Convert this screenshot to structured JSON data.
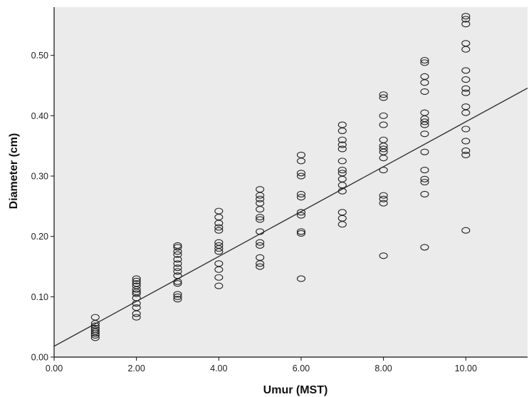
{
  "chart_data": {
    "type": "scatter",
    "title": "",
    "xlabel": "Umur (MST)",
    "ylabel": "Diameter (cm)",
    "xlim": [
      0,
      11.5
    ],
    "ylim": [
      0,
      0.58
    ],
    "x_ticks": [
      "0.00",
      "2.00",
      "4.00",
      "6.00",
      "8.00",
      "10.00"
    ],
    "x_tick_values": [
      0,
      2,
      4,
      6,
      8,
      10
    ],
    "y_ticks": [
      "0.00",
      "0.10",
      "0.20",
      "0.30",
      "0.40",
      "0.50"
    ],
    "y_tick_values": [
      0,
      0.1,
      0.2,
      0.3,
      0.4,
      0.5
    ],
    "grid": false,
    "fit_line": {
      "intercept": 0.018,
      "slope": 0.0372
    },
    "colors": {
      "background": "#ebebeb",
      "marker": "#222222",
      "line": "#333333"
    },
    "series": [
      {
        "points": [
          [
            1,
            0.032
          ],
          [
            1,
            0.036
          ],
          [
            1,
            0.039
          ],
          [
            1,
            0.042
          ],
          [
            1,
            0.045
          ],
          [
            1,
            0.048
          ],
          [
            1,
            0.052
          ],
          [
            1,
            0.056
          ],
          [
            1,
            0.066
          ],
          [
            2,
            0.066
          ],
          [
            2,
            0.072
          ],
          [
            2,
            0.082
          ],
          [
            2,
            0.089
          ],
          [
            2,
            0.098
          ],
          [
            2,
            0.105
          ],
          [
            2,
            0.108
          ],
          [
            2,
            0.112
          ],
          [
            2,
            0.118
          ],
          [
            2,
            0.122
          ],
          [
            2,
            0.126
          ],
          [
            2,
            0.13
          ],
          [
            3,
            0.096
          ],
          [
            3,
            0.1
          ],
          [
            3,
            0.104
          ],
          [
            3,
            0.122
          ],
          [
            3,
            0.125
          ],
          [
            3,
            0.135
          ],
          [
            3,
            0.142
          ],
          [
            3,
            0.148
          ],
          [
            3,
            0.155
          ],
          [
            3,
            0.162
          ],
          [
            3,
            0.17
          ],
          [
            3,
            0.175
          ],
          [
            3,
            0.182
          ],
          [
            3,
            0.185
          ],
          [
            4,
            0.118
          ],
          [
            4,
            0.132
          ],
          [
            4,
            0.145
          ],
          [
            4,
            0.155
          ],
          [
            4,
            0.175
          ],
          [
            4,
            0.18
          ],
          [
            4,
            0.185
          ],
          [
            4,
            0.19
          ],
          [
            4,
            0.21
          ],
          [
            4,
            0.215
          ],
          [
            4,
            0.222
          ],
          [
            4,
            0.232
          ],
          [
            4,
            0.242
          ],
          [
            5,
            0.15
          ],
          [
            5,
            0.155
          ],
          [
            5,
            0.165
          ],
          [
            5,
            0.185
          ],
          [
            5,
            0.19
          ],
          [
            5,
            0.208
          ],
          [
            5,
            0.228
          ],
          [
            5,
            0.232
          ],
          [
            5,
            0.245
          ],
          [
            5,
            0.255
          ],
          [
            5,
            0.262
          ],
          [
            5,
            0.268
          ],
          [
            5,
            0.278
          ],
          [
            6,
            0.13
          ],
          [
            6,
            0.205
          ],
          [
            6,
            0.208
          ],
          [
            6,
            0.235
          ],
          [
            6,
            0.24
          ],
          [
            6,
            0.265
          ],
          [
            6,
            0.27
          ],
          [
            6,
            0.3
          ],
          [
            6,
            0.305
          ],
          [
            6,
            0.325
          ],
          [
            6,
            0.335
          ],
          [
            7,
            0.22
          ],
          [
            7,
            0.23
          ],
          [
            7,
            0.24
          ],
          [
            7,
            0.275
          ],
          [
            7,
            0.285
          ],
          [
            7,
            0.295
          ],
          [
            7,
            0.305
          ],
          [
            7,
            0.31
          ],
          [
            7,
            0.325
          ],
          [
            7,
            0.345
          ],
          [
            7,
            0.352
          ],
          [
            7,
            0.36
          ],
          [
            7,
            0.375
          ],
          [
            7,
            0.385
          ],
          [
            8,
            0.168
          ],
          [
            8,
            0.255
          ],
          [
            8,
            0.262
          ],
          [
            8,
            0.268
          ],
          [
            8,
            0.31
          ],
          [
            8,
            0.33
          ],
          [
            8,
            0.34
          ],
          [
            8,
            0.345
          ],
          [
            8,
            0.35
          ],
          [
            8,
            0.36
          ],
          [
            8,
            0.385
          ],
          [
            8,
            0.4
          ],
          [
            8,
            0.43
          ],
          [
            8,
            0.435
          ],
          [
            9,
            0.182
          ],
          [
            9,
            0.27
          ],
          [
            9,
            0.29
          ],
          [
            9,
            0.295
          ],
          [
            9,
            0.31
          ],
          [
            9,
            0.34
          ],
          [
            9,
            0.37
          ],
          [
            9,
            0.385
          ],
          [
            9,
            0.39
          ],
          [
            9,
            0.395
          ],
          [
            9,
            0.405
          ],
          [
            9,
            0.44
          ],
          [
            9,
            0.455
          ],
          [
            9,
            0.465
          ],
          [
            9,
            0.488
          ],
          [
            9,
            0.492
          ],
          [
            10,
            0.21
          ],
          [
            10,
            0.335
          ],
          [
            10,
            0.342
          ],
          [
            10,
            0.358
          ],
          [
            10,
            0.378
          ],
          [
            10,
            0.405
          ],
          [
            10,
            0.415
          ],
          [
            10,
            0.438
          ],
          [
            10,
            0.445
          ],
          [
            10,
            0.46
          ],
          [
            10,
            0.475
          ],
          [
            10,
            0.51
          ],
          [
            10,
            0.52
          ],
          [
            10,
            0.552
          ],
          [
            10,
            0.56
          ],
          [
            10,
            0.565
          ]
        ]
      }
    ]
  }
}
